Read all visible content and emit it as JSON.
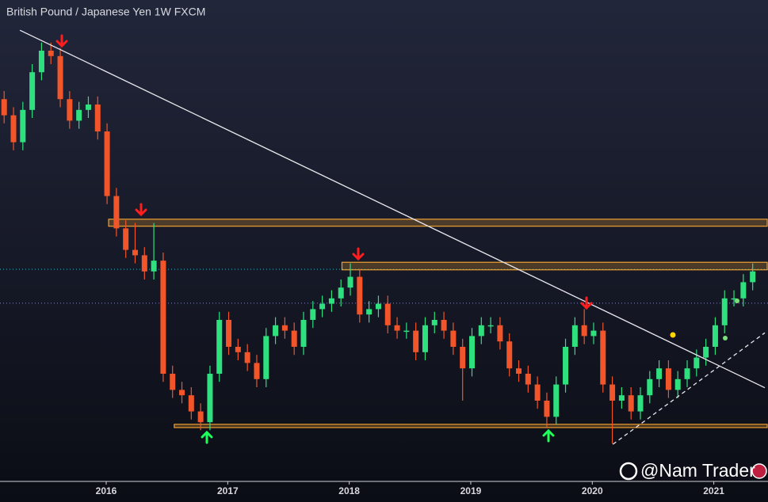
{
  "chart_data": {
    "type": "candlestick",
    "title": "British Pound / Japanese Yen  1W  FXCM",
    "watermark": "@Nam Trader",
    "up_color": "#2fe07f",
    "down_color": "#f2552a",
    "xlim": [
      2015.126,
      2021.42
    ],
    "xticks": [
      2016,
      2017,
      2018,
      2019,
      2020,
      2021
    ],
    "ylim": [
      115,
      200
    ],
    "x": [
      2015.16,
      2015.237,
      2015.314,
      2015.391,
      2015.468,
      2015.545,
      2015.622,
      2015.699,
      2015.776,
      2015.853,
      2015.93,
      2016.007,
      2016.084,
      2016.161,
      2016.238,
      2016.315,
      2016.392,
      2016.469,
      2016.546,
      2016.623,
      2016.7,
      2016.777,
      2016.854,
      2016.931,
      2017.008,
      2017.085,
      2017.162,
      2017.239,
      2017.316,
      2017.393,
      2017.47,
      2017.547,
      2017.624,
      2017.701,
      2017.778,
      2017.855,
      2017.932,
      2018.009,
      2018.086,
      2018.163,
      2018.24,
      2018.317,
      2018.394,
      2018.471,
      2018.548,
      2018.625,
      2018.702,
      2018.779,
      2018.856,
      2018.933,
      2019.01,
      2019.087,
      2019.164,
      2019.241,
      2019.318,
      2019.395,
      2019.472,
      2019.549,
      2019.626,
      2019.703,
      2019.78,
      2019.857,
      2019.934,
      2020.011,
      2020.088,
      2020.165,
      2020.242,
      2020.319,
      2020.396,
      2020.473,
      2020.55,
      2020.627,
      2020.704,
      2020.781,
      2020.858,
      2020.935,
      2021.012,
      2021.089,
      2021.166,
      2021.243,
      2021.32
    ],
    "open": [
      186,
      183,
      178,
      184,
      191,
      195,
      194,
      186,
      182,
      184,
      185,
      180,
      168,
      162,
      158,
      157,
      154,
      156,
      135,
      132,
      131,
      128,
      126,
      135,
      145,
      140,
      139,
      137,
      134,
      142,
      144,
      143,
      140,
      145,
      147,
      148,
      149,
      151,
      153,
      146,
      147,
      148,
      144,
      143,
      143,
      139,
      144,
      145,
      143,
      140,
      136,
      142,
      144,
      144,
      141,
      136,
      135,
      133,
      130,
      127,
      133,
      140,
      144,
      142,
      143,
      133,
      130,
      131,
      128,
      131,
      134,
      136,
      132,
      134,
      136,
      138,
      140,
      144,
      149,
      149,
      152
    ],
    "high": [
      187.5,
      184.5,
      185.5,
      192.5,
      196.5,
      196.5,
      195.5,
      187.5,
      185.5,
      186.5,
      186.5,
      181.5,
      169.5,
      163.5,
      163,
      158.5,
      163,
      157.5,
      136.5,
      133.5,
      132.5,
      129.5,
      136.5,
      146.5,
      146.5,
      141.5,
      140.5,
      138.5,
      143.5,
      145.5,
      145.5,
      144.5,
      146.5,
      148.5,
      149.5,
      150.5,
      152.5,
      155.5,
      154.5,
      148.5,
      149.5,
      149.5,
      145.5,
      144.5,
      144.5,
      145.5,
      146.5,
      146.5,
      144.5,
      141.5,
      143.5,
      145.5,
      145.5,
      145.5,
      142.5,
      137.5,
      136.5,
      134.5,
      131.5,
      134.5,
      141.5,
      145.5,
      147,
      144.5,
      144.5,
      134.5,
      132.5,
      132.5,
      132.5,
      135.5,
      137.5,
      137.5,
      135.5,
      137.5,
      139.5,
      141.5,
      145.5,
      150.5,
      150.5,
      153.5,
      155.5
    ],
    "low": [
      181.5,
      176.5,
      176.5,
      182.5,
      189.5,
      192.5,
      184.5,
      180.5,
      180.5,
      182.5,
      178.5,
      166.5,
      160.5,
      156.5,
      155.5,
      152.5,
      152.5,
      133.5,
      130.5,
      129.5,
      126.5,
      124.5,
      124.5,
      133.5,
      138.5,
      137.5,
      135.5,
      132.5,
      132.5,
      140.5,
      141.5,
      138.5,
      138.5,
      143.5,
      145.5,
      146.5,
      147.5,
      149.5,
      144.5,
      144.5,
      145.5,
      142.5,
      141.5,
      141.5,
      137.5,
      137.5,
      142.5,
      141.5,
      138.5,
      130,
      134.5,
      140.5,
      142.5,
      139.5,
      134.5,
      133.5,
      131.5,
      128.5,
      125,
      125.5,
      131.5,
      138.5,
      140.5,
      140.5,
      131.5,
      122,
      128.5,
      126.5,
      126.5,
      129.5,
      132.5,
      130.5,
      130.5,
      132.5,
      134.5,
      136.5,
      138.5,
      142.5,
      147.5,
      147.5,
      150.5
    ],
    "close": [
      183,
      178,
      184,
      191,
      195,
      194,
      186,
      182,
      184,
      185,
      180,
      168,
      162,
      158,
      157,
      154,
      156,
      135,
      132,
      131,
      128,
      126,
      135,
      145,
      140,
      139,
      137,
      134,
      142,
      144,
      143,
      140,
      145,
      147,
      148,
      149,
      151,
      153,
      146,
      147,
      148,
      144,
      143,
      143,
      139,
      144,
      145,
      143,
      140,
      136,
      142,
      144,
      144,
      141,
      136,
      135,
      133,
      130,
      127,
      133,
      140,
      144,
      142,
      143,
      133,
      130,
      131,
      128,
      131,
      134,
      136,
      132,
      134,
      136,
      138,
      140,
      144,
      149,
      149,
      152,
      154
    ],
    "zones": [
      {
        "from": 2016.02,
        "low": 162.4,
        "high": 163.7
      },
      {
        "from": 2017.94,
        "low": 154.3,
        "high": 155.7
      },
      {
        "from": 2016.56,
        "low": 125.0,
        "high": 125.6
      }
    ],
    "zone_color": "#f0a030",
    "trendlines": [
      {
        "x": [
          2015.29,
          2021.42
        ],
        "y": [
          198.8,
          132.4
        ],
        "color": "#e8e8ee",
        "dashed": false
      },
      {
        "x": [
          2020.17,
          2021.42
        ],
        "y": [
          121.9,
          142.6
        ],
        "color": "#e8e8ee",
        "dashed": true
      }
    ],
    "levels": [
      {
        "value": 154.4,
        "color": "#2bb5c8"
      },
      {
        "value": 148.1,
        "color": "#8a7fc0"
      }
    ]
  }
}
